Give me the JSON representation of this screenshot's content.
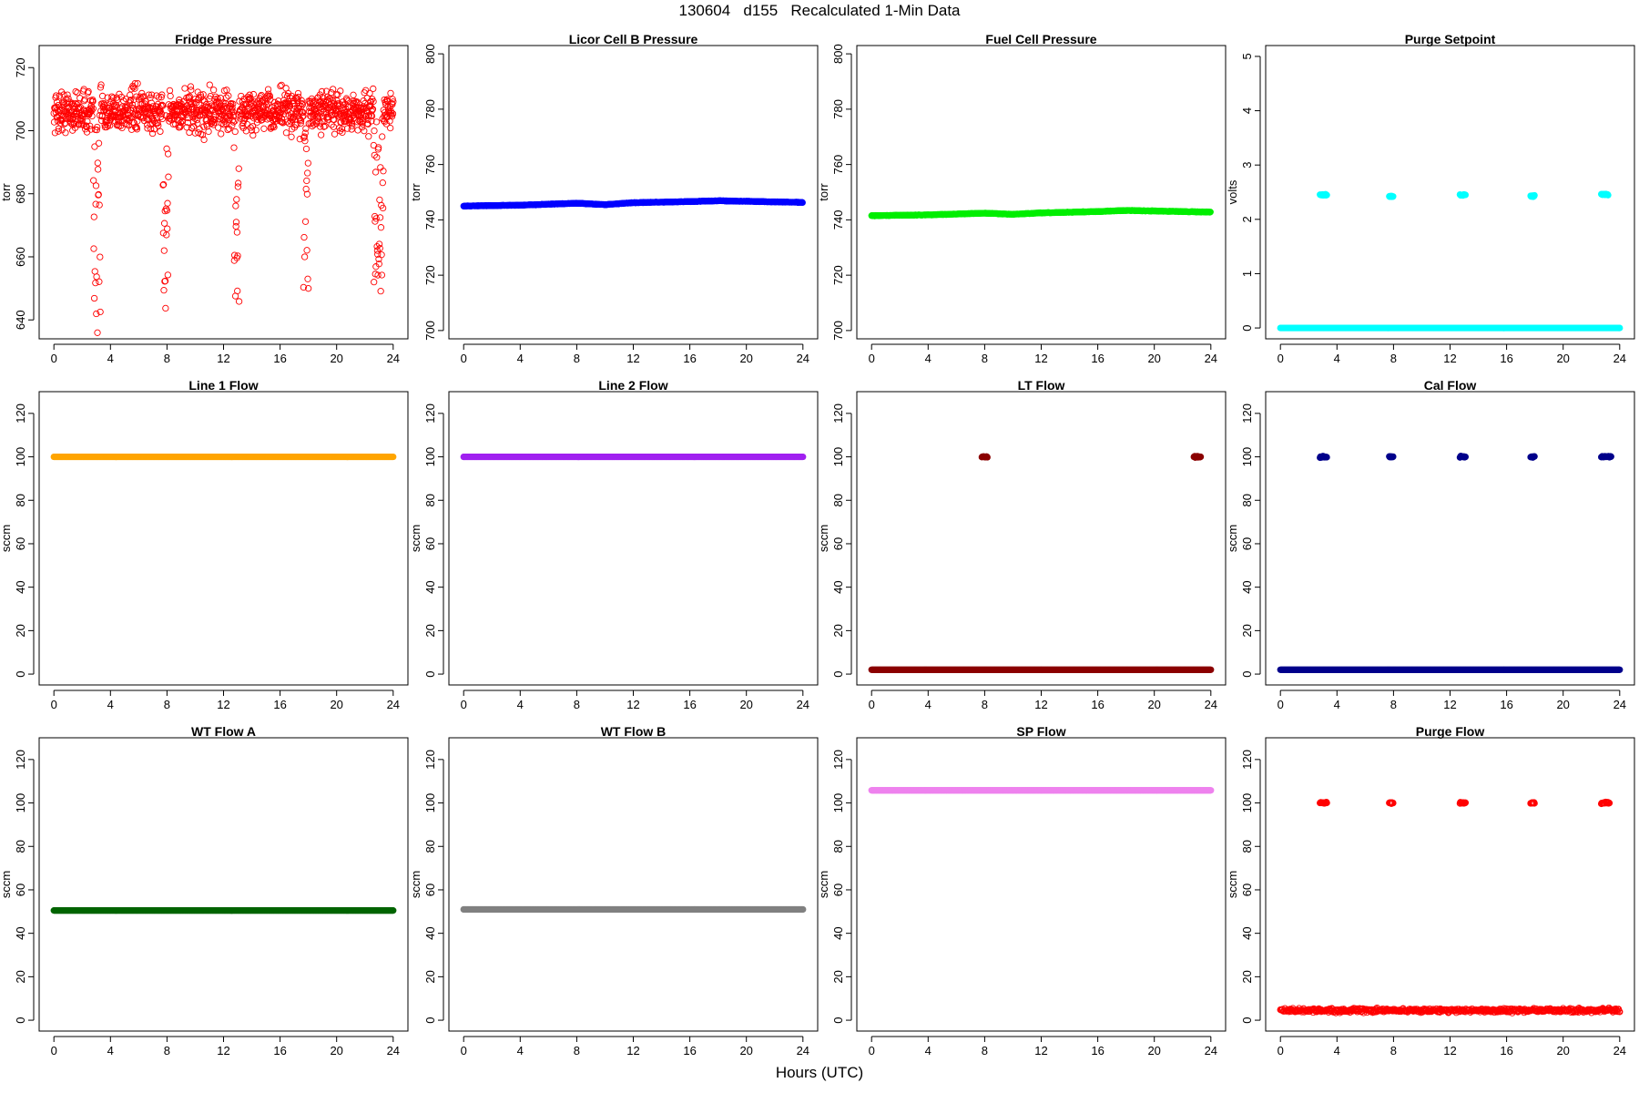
{
  "figure": {
    "title": "130604   d155   Recalculated 1-Min Data",
    "xlabel": "Hours (UTC)"
  },
  "chart_data": [
    {
      "type": "scatter",
      "title": "Fridge Pressure",
      "ylabel": "torr",
      "xlim": [
        0,
        24
      ],
      "xticks": [
        0,
        4,
        8,
        12,
        16,
        20,
        24
      ],
      "ylim": [
        634,
        727
      ],
      "yticks": [
        640,
        660,
        680,
        700,
        720
      ],
      "marker": "open-circle",
      "color": "#ff0000",
      "series": [
        {
          "baseline_mean": 706,
          "baseline_spread": 7,
          "x_range": [
            0,
            24
          ],
          "dips": [
            {
              "x_start": 2.8,
              "x_end": 3.3,
              "min_value": 635
            },
            {
              "x_start": 7.7,
              "x_end": 8.1,
              "min_value": 641
            },
            {
              "x_start": 12.7,
              "x_end": 13.1,
              "min_value": 642
            },
            {
              "x_start": 17.6,
              "x_end": 18.0,
              "min_value": 645
            },
            {
              "x_start": 22.6,
              "x_end": 23.3,
              "min_value": 649
            }
          ]
        }
      ]
    },
    {
      "type": "scatter",
      "title": "Licor Cell B Pressure",
      "ylabel": "torr",
      "xlim": [
        0,
        24
      ],
      "xticks": [
        0,
        4,
        8,
        12,
        16,
        20,
        24
      ],
      "ylim": [
        697,
        803
      ],
      "yticks": [
        700,
        720,
        740,
        760,
        780,
        800
      ],
      "marker": "filled",
      "color": "#0000ff",
      "series": [
        {
          "x": [
            0,
            4,
            8,
            10,
            12,
            16,
            18,
            24
          ],
          "y": [
            745.0,
            745.3,
            746.0,
            745.5,
            746.2,
            746.6,
            746.9,
            746.3
          ]
        }
      ]
    },
    {
      "type": "scatter",
      "title": "Fuel Cell Pressure",
      "ylabel": "torr",
      "xlim": [
        0,
        24
      ],
      "xticks": [
        0,
        4,
        8,
        12,
        16,
        20,
        24
      ],
      "ylim": [
        697,
        803
      ],
      "yticks": [
        700,
        720,
        740,
        760,
        780,
        800
      ],
      "marker": "filled",
      "color": "#00ee00",
      "series": [
        {
          "x": [
            0,
            4,
            8,
            10,
            12,
            16,
            18,
            24
          ],
          "y": [
            741.5,
            741.8,
            742.4,
            742.0,
            742.5,
            743.0,
            743.4,
            742.8
          ]
        }
      ]
    },
    {
      "type": "scatter",
      "title": "Purge Setpoint",
      "ylabel": "volts",
      "xlim": [
        0,
        24
      ],
      "xticks": [
        0,
        4,
        8,
        12,
        16,
        20,
        24
      ],
      "ylim": [
        -0.2,
        5.2
      ],
      "yticks": [
        0,
        1,
        2,
        3,
        4,
        5
      ],
      "marker": "filled",
      "color": "#00ffff",
      "series": [
        {
          "x_range": [
            0,
            24
          ],
          "value": 0
        },
        {
          "clusters": [
            {
              "x_start": 2.8,
              "x_end": 3.3,
              "value": 2.45
            },
            {
              "x_start": 7.7,
              "x_end": 8.0,
              "value": 2.42
            },
            {
              "x_start": 12.7,
              "x_end": 13.1,
              "value": 2.45
            },
            {
              "x_start": 17.7,
              "x_end": 18.0,
              "value": 2.43
            },
            {
              "x_start": 22.7,
              "x_end": 23.2,
              "value": 2.46
            }
          ]
        }
      ]
    },
    {
      "type": "scatter",
      "title": "Line 1 Flow",
      "ylabel": "sccm",
      "xlim": [
        0,
        24
      ],
      "xticks": [
        0,
        4,
        8,
        12,
        16,
        20,
        24
      ],
      "ylim": [
        -5,
        130
      ],
      "yticks": [
        0,
        20,
        40,
        60,
        80,
        100,
        120
      ],
      "marker": "filled",
      "color": "#ffa500",
      "series": [
        {
          "x_range": [
            0,
            24
          ],
          "value": 100
        }
      ]
    },
    {
      "type": "scatter",
      "title": "Line 2 Flow",
      "ylabel": "sccm",
      "xlim": [
        0,
        24
      ],
      "xticks": [
        0,
        4,
        8,
        12,
        16,
        20,
        24
      ],
      "ylim": [
        -5,
        130
      ],
      "yticks": [
        0,
        20,
        40,
        60,
        80,
        100,
        120
      ],
      "marker": "filled",
      "color": "#a020f0",
      "series": [
        {
          "x_range": [
            0,
            24
          ],
          "value": 100
        }
      ]
    },
    {
      "type": "scatter",
      "title": "LT Flow",
      "ylabel": "sccm",
      "xlim": [
        0,
        24
      ],
      "xticks": [
        0,
        4,
        8,
        12,
        16,
        20,
        24
      ],
      "ylim": [
        -5,
        130
      ],
      "yticks": [
        0,
        20,
        40,
        60,
        80,
        100,
        120
      ],
      "marker": "filled",
      "color": "#8b0000",
      "series": [
        {
          "x_range": [
            0,
            24
          ],
          "value": 2
        },
        {
          "clusters": [
            {
              "x_start": 7.8,
              "x_end": 8.2,
              "value": 100
            },
            {
              "x_start": 22.8,
              "x_end": 23.3,
              "value": 100
            }
          ]
        }
      ]
    },
    {
      "type": "scatter",
      "title": "Cal Flow",
      "ylabel": "sccm",
      "xlim": [
        0,
        24
      ],
      "xticks": [
        0,
        4,
        8,
        12,
        16,
        20,
        24
      ],
      "ylim": [
        -5,
        130
      ],
      "yticks": [
        0,
        20,
        40,
        60,
        80,
        100,
        120
      ],
      "marker": "filled",
      "color": "#00008b",
      "series": [
        {
          "x_range": [
            0,
            24
          ],
          "value": 2
        },
        {
          "clusters": [
            {
              "x_start": 2.8,
              "x_end": 3.3,
              "value": 100
            },
            {
              "x_start": 7.7,
              "x_end": 8.0,
              "value": 100
            },
            {
              "x_start": 12.7,
              "x_end": 13.1,
              "value": 100
            },
            {
              "x_start": 17.7,
              "x_end": 18.0,
              "value": 100
            },
            {
              "x_start": 22.7,
              "x_end": 23.4,
              "value": 100
            }
          ]
        }
      ]
    },
    {
      "type": "scatter",
      "title": "WT Flow A",
      "ylabel": "sccm",
      "xlim": [
        0,
        24
      ],
      "xticks": [
        0,
        4,
        8,
        12,
        16,
        20,
        24
      ],
      "ylim": [
        -5,
        130
      ],
      "yticks": [
        0,
        20,
        40,
        60,
        80,
        100,
        120
      ],
      "marker": "filled",
      "color": "#006400",
      "series": [
        {
          "x_range": [
            0,
            24
          ],
          "value": 50.5
        }
      ]
    },
    {
      "type": "scatter",
      "title": "WT Flow B",
      "ylabel": "sccm",
      "xlim": [
        0,
        24
      ],
      "xticks": [
        0,
        4,
        8,
        12,
        16,
        20,
        24
      ],
      "ylim": [
        -5,
        130
      ],
      "yticks": [
        0,
        20,
        40,
        60,
        80,
        100,
        120
      ],
      "marker": "filled",
      "color": "#808080",
      "series": [
        {
          "x_range": [
            0,
            24
          ],
          "value": 51
        }
      ]
    },
    {
      "type": "scatter",
      "title": "SP Flow",
      "ylabel": "sccm",
      "xlim": [
        0,
        24
      ],
      "xticks": [
        0,
        4,
        8,
        12,
        16,
        20,
        24
      ],
      "ylim": [
        -5,
        130
      ],
      "yticks": [
        0,
        20,
        40,
        60,
        80,
        100,
        120
      ],
      "marker": "filled",
      "color": "#ee82ee",
      "series": [
        {
          "x_range": [
            0,
            24
          ],
          "value": 105.8
        }
      ]
    },
    {
      "type": "scatter",
      "title": "Purge Flow",
      "ylabel": "sccm",
      "xlim": [
        0,
        24
      ],
      "xticks": [
        0,
        4,
        8,
        12,
        16,
        20,
        24
      ],
      "ylim": [
        -5,
        130
      ],
      "yticks": [
        0,
        20,
        40,
        60,
        80,
        100,
        120
      ],
      "marker": "open-circle",
      "color": "#ff0000",
      "series": [
        {
          "x_range": [
            0,
            24
          ],
          "value": 4.5,
          "spread": 1.5
        },
        {
          "clusters": [
            {
              "x_start": 2.8,
              "x_end": 3.3,
              "value": 100
            },
            {
              "x_start": 7.7,
              "x_end": 8.0,
              "value": 100
            },
            {
              "x_start": 12.7,
              "x_end": 13.1,
              "value": 100
            },
            {
              "x_start": 17.7,
              "x_end": 18.0,
              "value": 100
            },
            {
              "x_start": 22.7,
              "x_end": 23.3,
              "value": 100
            }
          ]
        }
      ]
    }
  ]
}
